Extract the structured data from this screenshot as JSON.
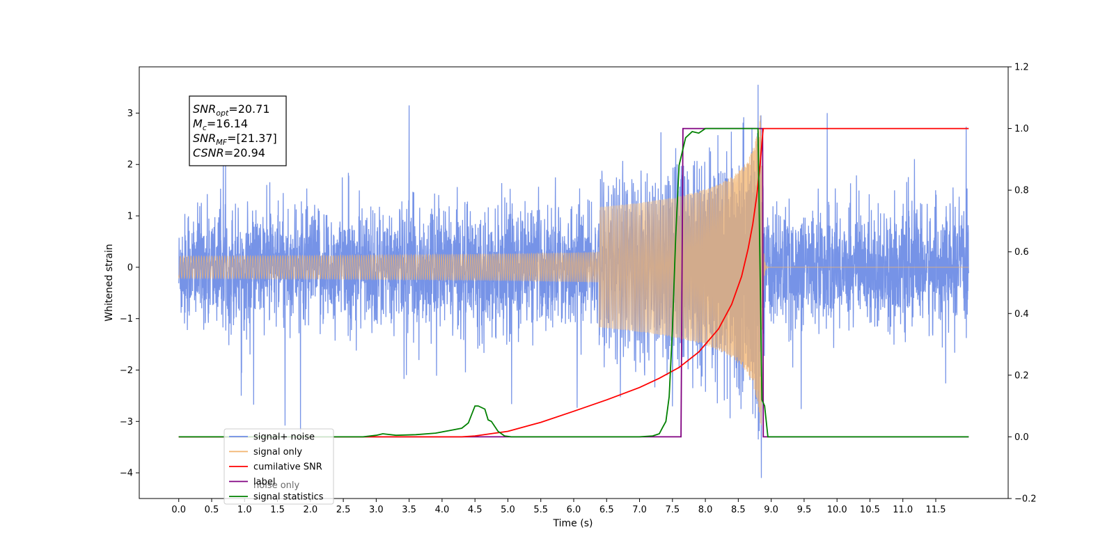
{
  "chart_data": {
    "type": "line",
    "xlabel": "Time (s)",
    "ylabel_left": "Whitened strain",
    "ylabel_right": "",
    "xlim": [
      -0.6,
      12.6
    ],
    "ylim_left": [
      -4.5,
      3.9
    ],
    "ylim_right": [
      -0.2,
      1.2
    ],
    "grid": false,
    "legend_placement": "lower-left",
    "x_ticks": [
      0.0,
      0.5,
      1.0,
      1.5,
      2.0,
      2.5,
      3.0,
      3.5,
      4.0,
      4.5,
      5.0,
      5.5,
      6.0,
      6.5,
      7.0,
      7.5,
      8.0,
      8.5,
      9.0,
      9.5,
      10.0,
      10.5,
      11.0,
      11.5
    ],
    "x_tick_labels": [
      "0.0",
      "0.5",
      "1.0",
      "1.5",
      "2.0",
      "2.5",
      "3.0",
      "3.5",
      "4.0",
      "4.5",
      "5.0",
      "5.5",
      "6.0",
      "6.5",
      "7.0",
      "7.5",
      "8.0",
      "8.5",
      "9.0",
      "9.5",
      "10.0",
      "10.5",
      "11.0",
      "11.5"
    ],
    "y_left_ticks": [
      -4,
      -3,
      -2,
      -1,
      0,
      1,
      2,
      3
    ],
    "y_left_tick_labels": [
      "−4",
      "−3",
      "−2",
      "−1",
      "0",
      "1",
      "2",
      "3"
    ],
    "y_right_ticks": [
      -0.2,
      0.0,
      0.2,
      0.4,
      0.6,
      0.8,
      1.0,
      1.2
    ],
    "y_right_tick_labels": [
      "−0.2",
      "0.0",
      "0.2",
      "0.4",
      "0.6",
      "0.8",
      "1.0",
      "1.2"
    ],
    "annotation": {
      "lines": [
        {
          "sym": "SNR",
          "sub": "opt",
          "value": "=20.71"
        },
        {
          "sym": "M",
          "sub": "c",
          "value": "=16.14"
        },
        {
          "sym": "SNR",
          "sub": "MF",
          "value": "=[21.37]"
        },
        {
          "sym": "CSNR",
          "sub": "",
          "value": "=20.94"
        }
      ]
    },
    "series": [
      {
        "name": "signal+ noise",
        "color": "#6f8de6",
        "axis": "left",
        "style": "noise",
        "x_range": [
          0.0,
          12.0
        ],
        "noise_std": 0.55,
        "notable_spikes": [
          [
            1.85,
            -3.2
          ],
          [
            3.5,
            3.15
          ],
          [
            8.8,
            3.55
          ],
          [
            8.85,
            -4.1
          ],
          [
            9.85,
            3.0
          ],
          [
            0.95,
            -2.5
          ]
        ]
      },
      {
        "name": "signal only",
        "color": "#f2b36e",
        "axis": "left",
        "style": "chirp",
        "x_range": [
          0.0,
          12.0
        ],
        "merger_time": 8.85,
        "peak_amplitude": 3.3
      },
      {
        "name": "cumilative SNR",
        "color": "#ff0000",
        "axis": "right",
        "x": [
          0.0,
          4.3,
          4.5,
          5.0,
          5.5,
          6.0,
          6.5,
          7.0,
          7.3,
          7.6,
          7.9,
          8.2,
          8.4,
          8.55,
          8.65,
          8.72,
          8.78,
          8.83,
          8.87,
          8.88,
          12.0
        ],
        "y": [
          0.0,
          0.0,
          0.003,
          0.018,
          0.047,
          0.083,
          0.12,
          0.16,
          0.19,
          0.225,
          0.275,
          0.35,
          0.43,
          0.52,
          0.61,
          0.69,
          0.78,
          0.88,
          0.98,
          1.0,
          1.0
        ]
      },
      {
        "name": "label",
        "color": "#800080",
        "axis": "right",
        "x": [
          0.0,
          7.63,
          7.66,
          8.87,
          8.88,
          12.0
        ],
        "y": [
          0.0,
          0.0,
          1.0,
          1.0,
          0.0,
          0.0
        ]
      },
      {
        "name": "signal statistics",
        "color": "#008000",
        "axis": "right",
        "x": [
          0.0,
          2.8,
          3.0,
          3.1,
          3.3,
          3.6,
          3.9,
          4.1,
          4.3,
          4.4,
          4.5,
          4.55,
          4.65,
          4.7,
          4.75,
          4.85,
          4.95,
          5.05,
          7.0,
          7.2,
          7.3,
          7.35,
          7.4,
          7.45,
          7.5,
          7.55,
          7.6,
          7.7,
          7.8,
          7.9,
          8.0,
          8.2,
          8.5,
          8.8,
          8.86,
          8.9,
          8.95,
          12.0
        ],
        "y": [
          0.0,
          0.0,
          0.005,
          0.01,
          0.005,
          0.007,
          0.012,
          0.02,
          0.028,
          0.045,
          0.1,
          0.1,
          0.09,
          0.055,
          0.05,
          0.018,
          0.003,
          0.0,
          0.0,
          0.003,
          0.01,
          0.03,
          0.05,
          0.13,
          0.35,
          0.65,
          0.88,
          0.97,
          0.99,
          0.985,
          1.0,
          1.0,
          1.0,
          1.0,
          0.12,
          0.1,
          0.0,
          0.0
        ]
      },
      {
        "name": "noise only",
        "color": "#bbbbbb",
        "axis": "left",
        "style": "legend-only"
      }
    ],
    "legend_entries": [
      {
        "label": "signal+ noise",
        "color": "#6f8de6"
      },
      {
        "label": "signal only",
        "color": "#f2b36e"
      },
      {
        "label": "cumilative SNR",
        "color": "#ff0000"
      },
      {
        "label": "label",
        "color": "#800080"
      },
      {
        "label": "signal statistics",
        "color": "#008000"
      }
    ],
    "legend_hidden_text": "noise only"
  }
}
